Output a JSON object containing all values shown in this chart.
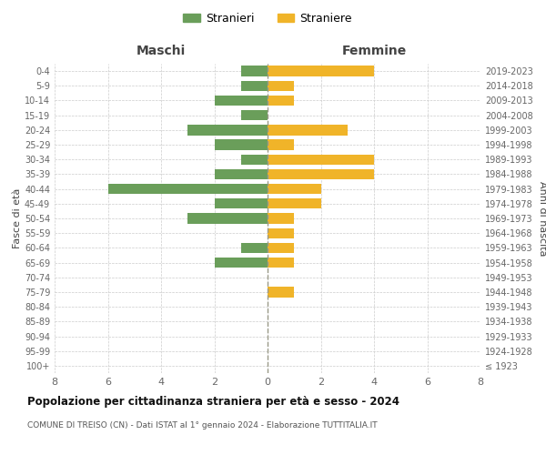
{
  "age_groups": [
    "100+",
    "95-99",
    "90-94",
    "85-89",
    "80-84",
    "75-79",
    "70-74",
    "65-69",
    "60-64",
    "55-59",
    "50-54",
    "45-49",
    "40-44",
    "35-39",
    "30-34",
    "25-29",
    "20-24",
    "15-19",
    "10-14",
    "5-9",
    "0-4"
  ],
  "birth_years": [
    "≤ 1923",
    "1924-1928",
    "1929-1933",
    "1934-1938",
    "1939-1943",
    "1944-1948",
    "1949-1953",
    "1954-1958",
    "1959-1963",
    "1964-1968",
    "1969-1973",
    "1974-1978",
    "1979-1983",
    "1984-1988",
    "1989-1993",
    "1994-1998",
    "1999-2003",
    "2004-2008",
    "2009-2013",
    "2014-2018",
    "2019-2023"
  ],
  "maschi": [
    0,
    0,
    0,
    0,
    0,
    0,
    0,
    2,
    1,
    0,
    3,
    2,
    6,
    2,
    1,
    2,
    3,
    1,
    2,
    1,
    1
  ],
  "femmine": [
    0,
    0,
    0,
    0,
    0,
    1,
    0,
    1,
    1,
    1,
    1,
    2,
    2,
    4,
    4,
    1,
    3,
    0,
    1,
    1,
    4
  ],
  "color_maschi": "#6a9e5a",
  "color_femmine": "#f0b429",
  "title_main": "Popolazione per cittadinanza straniera per età e sesso - 2024",
  "subtitle": "COMUNE DI TREISO (CN) - Dati ISTAT al 1° gennaio 2024 - Elaborazione TUTTITALIA.IT",
  "label_maschi_header": "Maschi",
  "label_femmine_header": "Femmine",
  "label_left_axis": "Fasce di età",
  "label_right_axis": "Anni di nascita",
  "legend_stranieri": "Stranieri",
  "legend_straniere": "Straniere",
  "xlim": 8,
  "bg_color": "#ffffff",
  "grid_color": "#cccccc",
  "bar_height": 0.7
}
